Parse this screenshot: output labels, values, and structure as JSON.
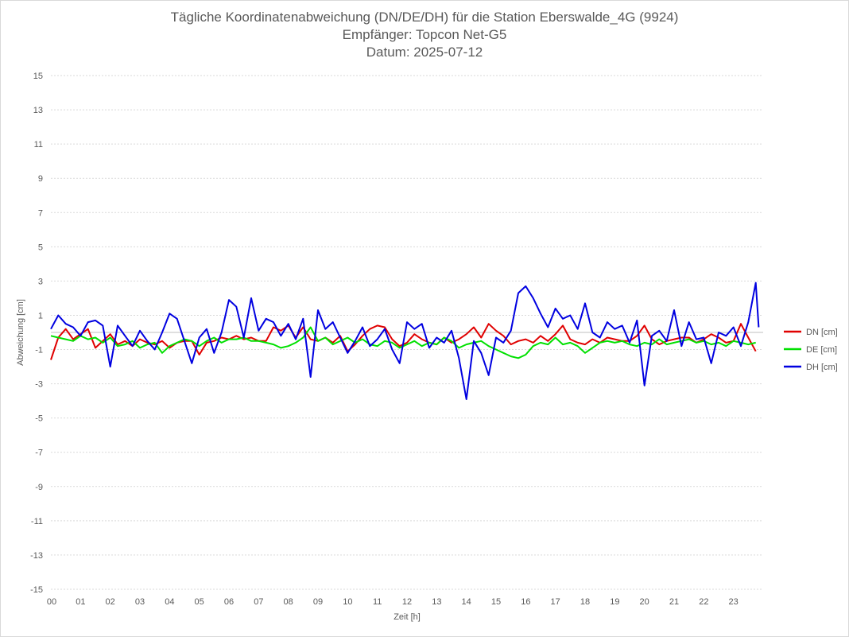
{
  "chart_data": {
    "type": "line",
    "title": "Tägliche Koordinatenabweichung (DN/DE/DH) für die Station Eberswalde_4G (9924)",
    "subtitle": "Empfänger: Topcon Net-G5",
    "date_line": "Datum: 2025-07-12",
    "xlabel": "Zeit [h]",
    "ylabel": "Abweichung [cm]",
    "xlim": [
      0,
      24
    ],
    "ylim": [
      -15,
      15
    ],
    "x_ticks": [
      "00",
      "01",
      "02",
      "03",
      "04",
      "05",
      "06",
      "07",
      "08",
      "09",
      "10",
      "11",
      "12",
      "13",
      "14",
      "15",
      "16",
      "17",
      "18",
      "19",
      "20",
      "21",
      "22",
      "23"
    ],
    "y_ticks": [
      15,
      13,
      11,
      9,
      7,
      5,
      3,
      1,
      -1,
      -3,
      -5,
      -7,
      -9,
      -11,
      -13,
      -15
    ],
    "grid": true,
    "legend_position": "right",
    "series": [
      {
        "name": "DN [cm]",
        "color": "#e00000",
        "x": [
          0.0,
          0.25,
          0.5,
          0.75,
          1.0,
          1.25,
          1.5,
          1.75,
          2.0,
          2.25,
          2.5,
          2.75,
          3.0,
          3.25,
          3.5,
          3.75,
          4.0,
          4.25,
          4.5,
          4.75,
          5.0,
          5.25,
          5.5,
          5.75,
          6.0,
          6.25,
          6.5,
          6.75,
          7.0,
          7.25,
          7.5,
          7.75,
          8.0,
          8.25,
          8.5,
          8.75,
          9.0,
          9.25,
          9.5,
          9.75,
          10.0,
          10.25,
          10.5,
          10.75,
          11.0,
          11.25,
          11.5,
          11.75,
          12.0,
          12.25,
          12.5,
          12.75,
          13.0,
          13.25,
          13.5,
          13.75,
          14.0,
          14.25,
          14.5,
          14.75,
          15.0,
          15.25,
          15.5,
          15.75,
          16.0,
          16.25,
          16.5,
          16.75,
          17.0,
          17.25,
          17.5,
          17.75,
          18.0,
          18.25,
          18.5,
          18.75,
          19.0,
          19.25,
          19.5,
          19.75,
          20.0,
          20.25,
          20.5,
          20.75,
          21.0,
          21.25,
          21.5,
          21.75,
          22.0,
          22.25,
          22.5,
          22.75,
          23.0,
          23.25,
          23.5,
          23.75
        ],
        "y": [
          -1.6,
          -0.3,
          0.2,
          -0.4,
          -0.1,
          0.2,
          -0.9,
          -0.5,
          -0.1,
          -0.7,
          -0.5,
          -0.8,
          -0.4,
          -0.6,
          -0.7,
          -0.5,
          -0.9,
          -0.6,
          -0.5,
          -0.5,
          -1.3,
          -0.6,
          -0.5,
          -0.3,
          -0.4,
          -0.2,
          -0.4,
          -0.3,
          -0.5,
          -0.5,
          0.3,
          0.1,
          0.4,
          -0.3,
          0.3,
          -0.4,
          -0.5,
          -0.3,
          -0.6,
          -0.2,
          -1.1,
          -0.7,
          -0.2,
          0.2,
          0.4,
          0.3,
          -0.4,
          -0.8,
          -0.6,
          -0.1,
          -0.4,
          -0.6,
          -0.7,
          -0.3,
          -0.6,
          -0.4,
          -0.1,
          0.3,
          -0.3,
          0.5,
          0.1,
          -0.2,
          -0.7,
          -0.5,
          -0.4,
          -0.6,
          -0.2,
          -0.5,
          -0.1,
          0.4,
          -0.4,
          -0.6,
          -0.7,
          -0.4,
          -0.6,
          -0.3,
          -0.4,
          -0.5,
          -0.5,
          -0.2,
          0.4,
          -0.4,
          -0.7,
          -0.5,
          -0.4,
          -0.3,
          -0.3,
          -0.6,
          -0.4,
          -0.1,
          -0.3,
          -0.6,
          -0.5,
          0.5,
          -0.3,
          -1.1
        ]
      },
      {
        "name": "DE [cm]",
        "color": "#00e000",
        "x": [
          0.0,
          0.25,
          0.5,
          0.75,
          1.0,
          1.25,
          1.5,
          1.75,
          2.0,
          2.25,
          2.5,
          2.75,
          3.0,
          3.25,
          3.5,
          3.75,
          4.0,
          4.25,
          4.5,
          4.75,
          5.0,
          5.25,
          5.5,
          5.75,
          6.0,
          6.25,
          6.5,
          6.75,
          7.0,
          7.25,
          7.5,
          7.75,
          8.0,
          8.25,
          8.5,
          8.75,
          9.0,
          9.25,
          9.5,
          9.75,
          10.0,
          10.25,
          10.5,
          10.75,
          11.0,
          11.25,
          11.5,
          11.75,
          12.0,
          12.25,
          12.5,
          12.75,
          13.0,
          13.25,
          13.5,
          13.75,
          14.0,
          14.25,
          14.5,
          14.75,
          15.0,
          15.25,
          15.5,
          15.75,
          16.0,
          16.25,
          16.5,
          16.75,
          17.0,
          17.25,
          17.5,
          17.75,
          18.0,
          18.25,
          18.5,
          18.75,
          19.0,
          19.25,
          19.5,
          19.75,
          20.0,
          20.25,
          20.5,
          20.75,
          21.0,
          21.25,
          21.5,
          21.75,
          22.0,
          22.25,
          22.5,
          22.75,
          23.0,
          23.25,
          23.5,
          23.75
        ],
        "y": [
          -0.2,
          -0.3,
          -0.4,
          -0.5,
          -0.2,
          -0.4,
          -0.3,
          -0.6,
          -0.3,
          -0.8,
          -0.7,
          -0.5,
          -0.9,
          -0.7,
          -0.6,
          -1.2,
          -0.8,
          -0.6,
          -0.4,
          -0.5,
          -0.8,
          -0.5,
          -0.3,
          -0.6,
          -0.4,
          -0.4,
          -0.3,
          -0.5,
          -0.5,
          -0.6,
          -0.7,
          -0.9,
          -0.8,
          -0.6,
          -0.3,
          0.3,
          -0.5,
          -0.3,
          -0.7,
          -0.5,
          -0.3,
          -0.6,
          -0.4,
          -0.7,
          -0.8,
          -0.5,
          -0.6,
          -0.9,
          -0.7,
          -0.5,
          -0.8,
          -0.6,
          -0.7,
          -0.3,
          -0.5,
          -0.9,
          -0.7,
          -0.6,
          -0.5,
          -0.8,
          -1.0,
          -1.2,
          -1.4,
          -1.5,
          -1.3,
          -0.8,
          -0.6,
          -0.7,
          -0.3,
          -0.7,
          -0.6,
          -0.8,
          -1.2,
          -0.9,
          -0.6,
          -0.5,
          -0.6,
          -0.5,
          -0.7,
          -0.8,
          -0.6,
          -0.7,
          -0.4,
          -0.7,
          -0.6,
          -0.5,
          -0.4,
          -0.6,
          -0.5,
          -0.7,
          -0.6,
          -0.8,
          -0.5,
          -0.6,
          -0.7,
          -0.6
        ]
      },
      {
        "name": "DH [cm]",
        "color": "#0000e0",
        "x": [
          0.0,
          0.25,
          0.5,
          0.75,
          1.0,
          1.25,
          1.5,
          1.75,
          2.0,
          2.25,
          2.5,
          2.75,
          3.0,
          3.25,
          3.5,
          3.75,
          4.0,
          4.25,
          4.5,
          4.75,
          5.0,
          5.25,
          5.5,
          5.75,
          6.0,
          6.25,
          6.5,
          6.75,
          7.0,
          7.25,
          7.5,
          7.75,
          8.0,
          8.25,
          8.5,
          8.75,
          9.0,
          9.25,
          9.5,
          9.75,
          10.0,
          10.25,
          10.5,
          10.75,
          11.0,
          11.25,
          11.5,
          11.75,
          12.0,
          12.25,
          12.5,
          12.75,
          13.0,
          13.25,
          13.5,
          13.75,
          14.0,
          14.25,
          14.5,
          14.75,
          15.0,
          15.25,
          15.5,
          15.75,
          16.0,
          16.25,
          16.5,
          16.75,
          17.0,
          17.25,
          17.5,
          17.75,
          18.0,
          18.25,
          18.5,
          18.75,
          19.0,
          19.25,
          19.5,
          19.75,
          20.0,
          20.25,
          20.5,
          20.75,
          21.0,
          21.25,
          21.5,
          21.75,
          22.0,
          22.25,
          22.5,
          22.75,
          23.0,
          23.25,
          23.5,
          23.75,
          23.85
        ],
        "y": [
          0.2,
          1.0,
          0.5,
          0.3,
          -0.2,
          0.6,
          0.7,
          0.4,
          -2.0,
          0.4,
          -0.2,
          -0.8,
          0.1,
          -0.5,
          -1.0,
          0.0,
          1.1,
          0.8,
          -0.5,
          -1.8,
          -0.3,
          0.2,
          -1.2,
          0.0,
          1.9,
          1.5,
          -0.3,
          2.0,
          0.1,
          0.8,
          0.6,
          -0.2,
          0.5,
          -0.4,
          0.8,
          -2.6,
          1.3,
          0.2,
          0.6,
          -0.3,
          -1.2,
          -0.5,
          0.3,
          -0.8,
          -0.4,
          0.2,
          -1.0,
          -1.8,
          0.6,
          0.2,
          0.5,
          -0.9,
          -0.3,
          -0.6,
          0.1,
          -1.5,
          -3.9,
          -0.5,
          -1.2,
          -2.5,
          -0.3,
          -0.6,
          0.1,
          2.3,
          2.7,
          2.0,
          1.1,
          0.3,
          1.4,
          0.8,
          1.0,
          0.2,
          1.7,
          0.0,
          -0.3,
          0.6,
          0.2,
          0.4,
          -0.6,
          0.7,
          -3.1,
          -0.2,
          0.1,
          -0.5,
          1.3,
          -0.8,
          0.6,
          -0.4,
          -0.3,
          -1.8,
          0.0,
          -0.2,
          0.3,
          -0.8,
          0.6,
          2.9,
          0.3
        ]
      }
    ]
  }
}
